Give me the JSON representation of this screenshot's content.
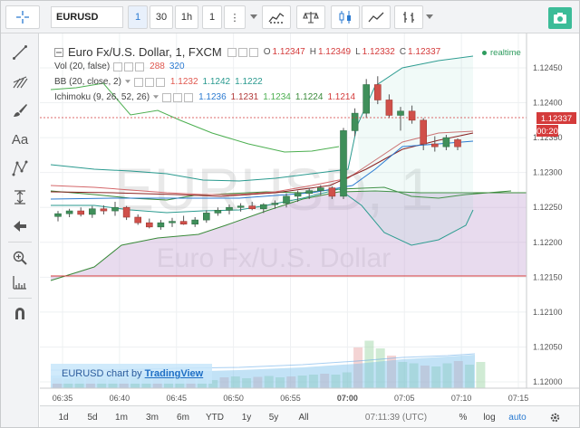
{
  "toolbar": {
    "symbol": "EURUSD",
    "intervals": [
      "1",
      "30",
      "1h",
      "1"
    ],
    "more_label": "⋮"
  },
  "chart": {
    "title": "Euro Fx/U.S. Dollar, 1, FXCM",
    "ohlc": {
      "o_label": "O",
      "o": "1.12347",
      "h_label": "H",
      "h": "1.12349",
      "l_label": "L",
      "l": "1.12332",
      "c_label": "C",
      "c": "1.12337"
    },
    "realtime": "realtime",
    "watermark_big": "EURUSD, 1",
    "watermark_small": "Euro Fx/U.S. Dollar",
    "indicators": [
      {
        "name": "Vol (20, false)",
        "values": [
          "288",
          "320"
        ],
        "colors": [
          "#e0584f",
          "#2a7ad1"
        ]
      },
      {
        "name": "BB (20, close, 2)",
        "values": [
          "1.1232",
          "1.1242",
          "1.1222"
        ],
        "colors": [
          "#e0584f",
          "#2a9a8f",
          "#2a9a8f"
        ]
      },
      {
        "name": "Ichimoku (9, 26, 52, 26)",
        "values": [
          "1.1236",
          "1.1231",
          "1.1234",
          "1.1224",
          "1.1214"
        ],
        "colors": [
          "#2a7ad1",
          "#b23a3a",
          "#4caf50",
          "#3a8a3a",
          "#d43b3b"
        ]
      }
    ],
    "price_axis": [
      "1.12450",
      "1.12400",
      "1.12350",
      "1.12300",
      "1.12250",
      "1.12200",
      "1.12150",
      "1.12100",
      "1.12050",
      "1.12000"
    ],
    "last_price": "1.12337",
    "countdown": "00:20",
    "time_axis": [
      "06:35",
      "06:40",
      "06:45",
      "06:50",
      "06:55",
      "07:00",
      "07:05",
      "07:10",
      "07:15"
    ]
  },
  "attribution": {
    "prefix": "EURUSD chart by",
    "link": "TradingView"
  },
  "bottombar": {
    "ranges": [
      "1d",
      "5d",
      "1m",
      "3m",
      "6m",
      "YTD",
      "1y",
      "5y",
      "All"
    ],
    "clock": "07:11:39 (UTC)",
    "percent": "%",
    "log": "log",
    "auto": "auto"
  }
}
